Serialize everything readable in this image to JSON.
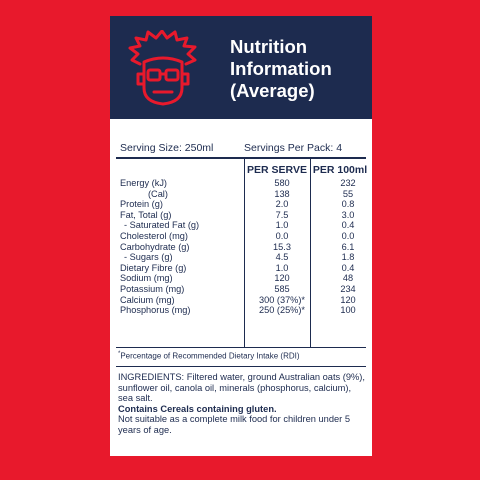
{
  "title": {
    "line1": "Nutrition",
    "line2": "Information",
    "line3": "(Average)"
  },
  "logo_icon": "professor-face-icon",
  "colors": {
    "background": "#e8192c",
    "header": "#1d2b4f",
    "text": "#1d2b4f"
  },
  "serving": {
    "size": "Serving Size: 250ml",
    "per_pack": "Servings Per Pack: 4"
  },
  "columns": {
    "per_serve": "PER SERVE",
    "per_100ml": "PER 100ml"
  },
  "rows": [
    {
      "label": "Energy (kJ)",
      "serve": "580",
      "per100": "232"
    },
    {
      "label": "(Cal)",
      "serve": "138",
      "per100": "55",
      "indent": "deep"
    },
    {
      "label": "Protein (g)",
      "serve": "2.0",
      "per100": "0.8"
    },
    {
      "label": "Fat, Total (g)",
      "serve": "7.5",
      "per100": "3.0"
    },
    {
      "label": "- Saturated Fat (g)",
      "serve": "1.0",
      "per100": "0.4",
      "indent": "small"
    },
    {
      "label": "Cholesterol (mg)",
      "serve": "0.0",
      "per100": "0.0"
    },
    {
      "label": "Carbohydrate (g)",
      "serve": "15.3",
      "per100": "6.1"
    },
    {
      "label": "- Sugars (g)",
      "serve": "4.5",
      "per100": "1.8",
      "indent": "small"
    },
    {
      "label": "Dietary Fibre (g)",
      "serve": "1.0",
      "per100": "0.4"
    },
    {
      "label": "Sodium (mg)",
      "serve": "120",
      "per100": "48"
    },
    {
      "label": "Potassium (mg)",
      "serve": "585",
      "per100": "234"
    },
    {
      "label": "Calcium (mg)",
      "serve": "300 (37%)*",
      "per100": "120"
    },
    {
      "label": "Phosphorus (mg)",
      "serve": "250 (25%)*",
      "per100": "100"
    }
  ],
  "footnote": {
    "mark": "*",
    "text": "Percentage of Recommended Dietary Intake (RDI)"
  },
  "ingredients": {
    "label": "INGREDIENTS:",
    "text": " Filtered water, ground Australian oats (9%), sunflower oil, canola oil, minerals (phosphorus, calcium), sea salt.",
    "allergen": "Contains Cereals containing gluten.",
    "warning": "Not suitable as a complete milk food for children under 5 years of age."
  }
}
